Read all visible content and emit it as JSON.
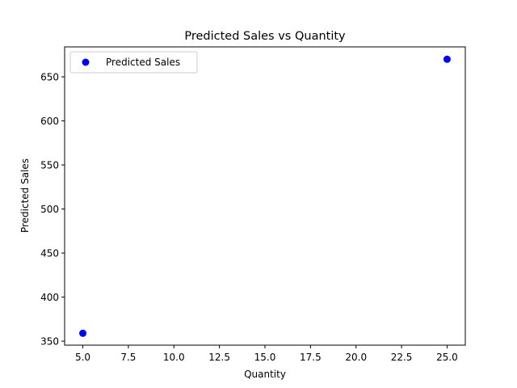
{
  "chart_data": {
    "type": "scatter",
    "title": "Predicted Sales vs Quantity",
    "xlabel": "Quantity",
    "ylabel": "Predicted Sales",
    "xlim": [
      4.0,
      26.0
    ],
    "ylim": [
      345.5,
      684.0
    ],
    "x_ticks": [
      5.0,
      7.5,
      10.0,
      12.5,
      15.0,
      17.5,
      20.0,
      22.5,
      25.0
    ],
    "x_tick_labels": [
      "5.0",
      "7.5",
      "10.0",
      "12.5",
      "15.0",
      "17.5",
      "20.0",
      "22.5",
      "25.0"
    ],
    "y_ticks": [
      350,
      400,
      450,
      500,
      550,
      600,
      650
    ],
    "y_tick_labels": [
      "350",
      "400",
      "450",
      "500",
      "550",
      "600",
      "650"
    ],
    "grid": false,
    "legend_position": "top-left",
    "series": [
      {
        "name": "Predicted Sales",
        "color": "#0000ff",
        "marker": "circle",
        "points": [
          {
            "x": 5,
            "y": 359
          },
          {
            "x": 25,
            "y": 670
          }
        ]
      }
    ]
  }
}
